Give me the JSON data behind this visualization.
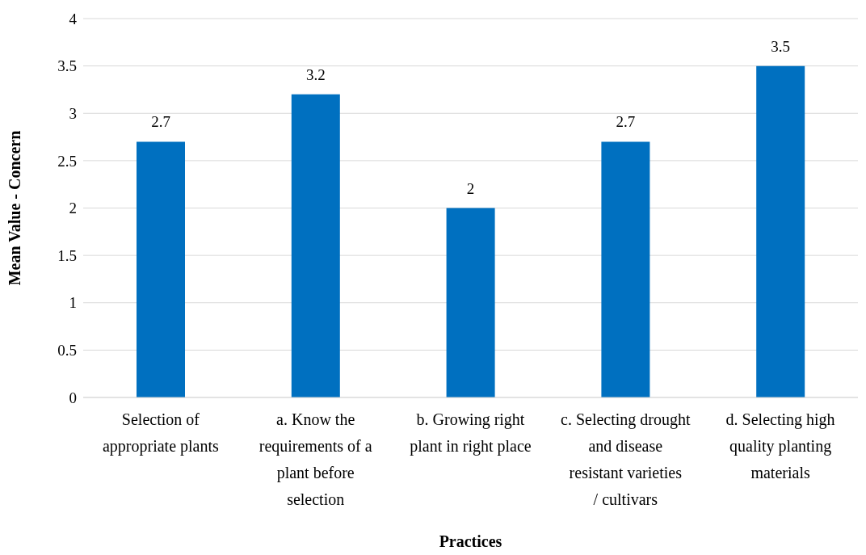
{
  "chart_data": {
    "type": "bar",
    "xlabel": "Practices",
    "ylabel": "Mean Value  - Concern",
    "categories": [
      "Selection of appropriate plants",
      "a. Know the requirements of a plant before selection",
      "b. Growing right plant in right place",
      "c. Selecting drought and disease resistant varieties / cultivars",
      "d. Selecting high quality planting materials"
    ],
    "values": [
      2.7,
      3.2,
      2,
      2.7,
      3.5
    ],
    "color": "#0070c0",
    "ylim": [
      0,
      4
    ],
    "yticks": [
      0,
      0.5,
      1,
      1.5,
      2,
      2.5,
      3,
      3.5,
      4
    ],
    "grid": "y",
    "data_labels": true
  }
}
